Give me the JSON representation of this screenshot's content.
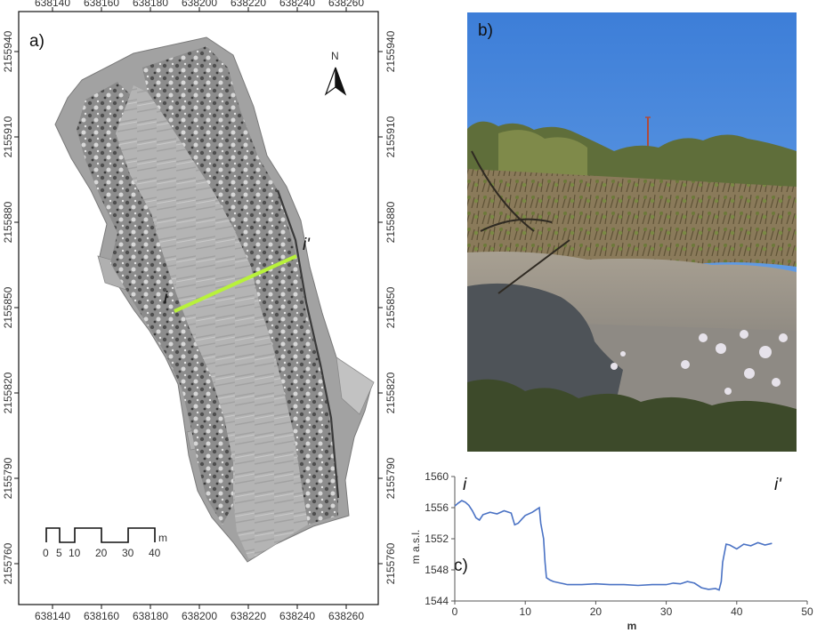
{
  "panel_a": {
    "label": "a)",
    "top_ticks": [
      "638140",
      "638160",
      "638180",
      "638200",
      "638220",
      "638240",
      "638260"
    ],
    "bottom_ticks": [
      "638140",
      "638160",
      "638180",
      "638200",
      "638220",
      "638240",
      "638260"
    ],
    "y_ticks": [
      "2155940",
      "2155910",
      "2155880",
      "2155850",
      "2155820",
      "2155790",
      "2155760"
    ],
    "north_label": "N",
    "profile_start": "i",
    "profile_end": "i'",
    "scale": {
      "labels": [
        "0",
        "5",
        "10",
        "20",
        "30",
        "40"
      ],
      "unit": "m"
    },
    "colors": {
      "profile_line": "#b8f23a",
      "hillshade": "#9a9a9a"
    }
  },
  "panel_b": {
    "label": "b)",
    "description_icon": "field-photo"
  },
  "chart_data": {
    "type": "line",
    "label": "c)",
    "start_label": "i",
    "end_label": "i'",
    "xlabel": "m",
    "ylabel": "m a.s.l.",
    "xlim": [
      0,
      50
    ],
    "ylim": [
      1544,
      1560
    ],
    "xticks": [
      0,
      10,
      20,
      30,
      40,
      50
    ],
    "yticks": [
      1544,
      1548,
      1552,
      1556,
      1560
    ],
    "grid": false,
    "series": [
      {
        "color": "#4a72c4",
        "x": [
          0,
          0.5,
          1,
          1.5,
          2,
          2.5,
          3,
          3.5,
          4,
          5,
          6,
          7,
          8,
          8.5,
          9,
          9.5,
          10,
          11,
          11.5,
          12,
          12.2,
          12.6,
          12.8,
          13,
          13.5,
          14,
          15,
          16,
          18,
          20,
          22,
          24,
          26,
          28,
          30,
          31,
          32,
          33,
          34,
          35,
          36,
          37,
          37.5,
          37.8,
          38,
          38.5,
          39,
          40,
          41,
          42,
          43,
          44,
          45
        ],
        "y": [
          1556.2,
          1556.6,
          1556.9,
          1556.7,
          1556.3,
          1555.6,
          1554.7,
          1554.4,
          1555.1,
          1555.4,
          1555.2,
          1555.6,
          1555.3,
          1553.8,
          1554.0,
          1554.5,
          1555.0,
          1555.4,
          1555.7,
          1556.0,
          1554.0,
          1552.0,
          1549.0,
          1547.0,
          1546.7,
          1546.5,
          1546.3,
          1546.1,
          1546.1,
          1546.2,
          1546.1,
          1546.1,
          1546.0,
          1546.1,
          1546.1,
          1546.3,
          1546.2,
          1546.5,
          1546.3,
          1545.7,
          1545.5,
          1545.6,
          1545.4,
          1546.5,
          1549.0,
          1551.3,
          1551.2,
          1550.7,
          1551.3,
          1551.1,
          1551.5,
          1551.2,
          1551.4
        ]
      }
    ]
  }
}
